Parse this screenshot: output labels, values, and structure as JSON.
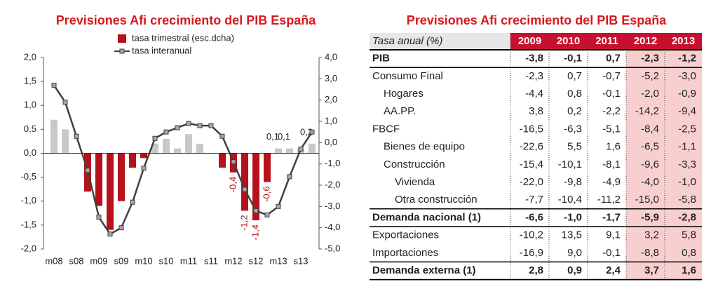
{
  "chart_data": {
    "type": "bar",
    "title": "Previsiones Afi crecimiento del PIB España",
    "categories": [
      "m08",
      null,
      "s08",
      null,
      "m09",
      null,
      "s09",
      null,
      "m10",
      null,
      "s10",
      null,
      "m11",
      null,
      "s11",
      null,
      "m12",
      null,
      "s12",
      null,
      "m13",
      null,
      "s13",
      null
    ],
    "series": [
      {
        "name": "tasa trimestral (esc.dcha)",
        "type": "bar",
        "color": "#b5121b",
        "positive_color": "#c8c8c8",
        "values": [
          0.7,
          0.5,
          0.0,
          -0.8,
          -1.1,
          -1.6,
          -1.0,
          -0.3,
          -0.1,
          0.2,
          0.3,
          0.1,
          0.4,
          0.2,
          0.0,
          -0.3,
          -0.4,
          -1.2,
          -1.4,
          -0.6,
          0.1,
          0.1,
          0.1,
          0.2
        ],
        "value_labels": [
          null,
          null,
          null,
          null,
          null,
          null,
          null,
          null,
          null,
          null,
          null,
          null,
          null,
          null,
          null,
          null,
          "-0,4",
          "-1,2",
          "-1,4",
          "-0,6",
          "0,1",
          "0,1",
          null,
          "0,2"
        ]
      },
      {
        "name": "tasa interanual",
        "type": "line",
        "axis": "y2",
        "color": "#404040",
        "marker_color": "#a6a6a6",
        "values": [
          2.7,
          1.9,
          0.3,
          -1.3,
          -3.5,
          -4.3,
          -4.0,
          -2.8,
          -1.2,
          0.2,
          0.5,
          0.7,
          0.9,
          0.8,
          0.8,
          0.3,
          -0.9,
          -2.2,
          -3.2,
          -3.4,
          -3.0,
          -1.6,
          -0.3,
          0.5
        ]
      }
    ],
    "ylim": [
      -2,
      2
    ],
    "yticks": [
      {
        "value": -2,
        "label": "-2,0"
      },
      {
        "value": -1.5,
        "label": "-1,5"
      },
      {
        "value": -1,
        "label": "-1,0"
      },
      {
        "value": -0.5,
        "label": "-0,5"
      },
      {
        "value": 0,
        "label": "0,0"
      },
      {
        "value": 0.5,
        "label": "0,5"
      },
      {
        "value": 1,
        "label": "1,0"
      },
      {
        "value": 1.5,
        "label": "1,5"
      },
      {
        "value": 2,
        "label": "2,0"
      }
    ],
    "y2lim": [
      -5,
      4
    ],
    "y2ticks": [
      {
        "value": -5,
        "label": "-5,0"
      },
      {
        "value": -4,
        "label": "-4,0"
      },
      {
        "value": -3,
        "label": "-3,0"
      },
      {
        "value": -2,
        "label": "-2,0"
      },
      {
        "value": -1,
        "label": "-1,0"
      },
      {
        "value": 0,
        "label": "0,0"
      },
      {
        "value": 1,
        "label": "1,0"
      },
      {
        "value": 2,
        "label": "2,0"
      },
      {
        "value": 3,
        "label": "3,0"
      },
      {
        "value": 4,
        "label": "4,0"
      }
    ]
  },
  "table": {
    "title": "Previsiones Afi crecimiento del PIB España",
    "header": [
      "Tasa anual (%)",
      "2009",
      "2010",
      "2011",
      "2012",
      "2013"
    ],
    "rows": [
      {
        "label": "PIB",
        "bold": true,
        "level": 0,
        "values": [
          "-3,8",
          "-0,1",
          "0,7",
          "-2,3",
          "-1,2"
        ]
      },
      {
        "label": "Consumo Final",
        "bold": false,
        "level": 0,
        "values": [
          "-2,3",
          "0,7",
          "-0,7",
          "-5,2",
          "-3,0"
        ]
      },
      {
        "label": "Hogares",
        "bold": false,
        "level": 1,
        "values": [
          "-4,4",
          "0,8",
          "-0,1",
          "-2,0",
          "-0,9"
        ]
      },
      {
        "label": "AA.PP.",
        "bold": false,
        "level": 1,
        "values": [
          "3,8",
          "0,2",
          "-2,2",
          "-14,2",
          "-9,4"
        ]
      },
      {
        "label": "FBCF",
        "bold": false,
        "level": 0,
        "values": [
          "-16,5",
          "-6,3",
          "-5,1",
          "-8,4",
          "-2,5"
        ]
      },
      {
        "label": "Bienes de equipo",
        "bold": false,
        "level": 1,
        "values": [
          "-22,6",
          "5,5",
          "1,6",
          "-6,5",
          "-1,1"
        ]
      },
      {
        "label": "Construcción",
        "bold": false,
        "level": 1,
        "values": [
          "-15,4",
          "-10,1",
          "-8,1",
          "-9,6",
          "-3,3"
        ]
      },
      {
        "label": "Vivienda",
        "bold": false,
        "level": 2,
        "values": [
          "-22,0",
          "-9,8",
          "-4,9",
          "-4,0",
          "-1,0"
        ]
      },
      {
        "label": "Otra construcción",
        "bold": false,
        "level": 2,
        "values": [
          "-7,7",
          "-10,4",
          "-11,2",
          "-15,0",
          "-5,8"
        ]
      },
      {
        "label": "Demanda nacional (1)",
        "bold": true,
        "level": 0,
        "values": [
          "-6,6",
          "-1,0",
          "-1,7",
          "-5,9",
          "-2,8"
        ]
      },
      {
        "label": "Exportaciones",
        "bold": false,
        "level": 0,
        "values": [
          "-10,2",
          "13,5",
          "9,1",
          "3,2",
          "5,8"
        ]
      },
      {
        "label": "Importaciones",
        "bold": false,
        "level": 0,
        "values": [
          "-16,9",
          "9,0",
          "-0,1",
          "-8,8",
          "0,8"
        ]
      },
      {
        "label": "Demanda externa (1)",
        "bold": true,
        "level": 0,
        "values": [
          "2,8",
          "0,9",
          "2,4",
          "3,7",
          "1,6"
        ]
      }
    ]
  }
}
